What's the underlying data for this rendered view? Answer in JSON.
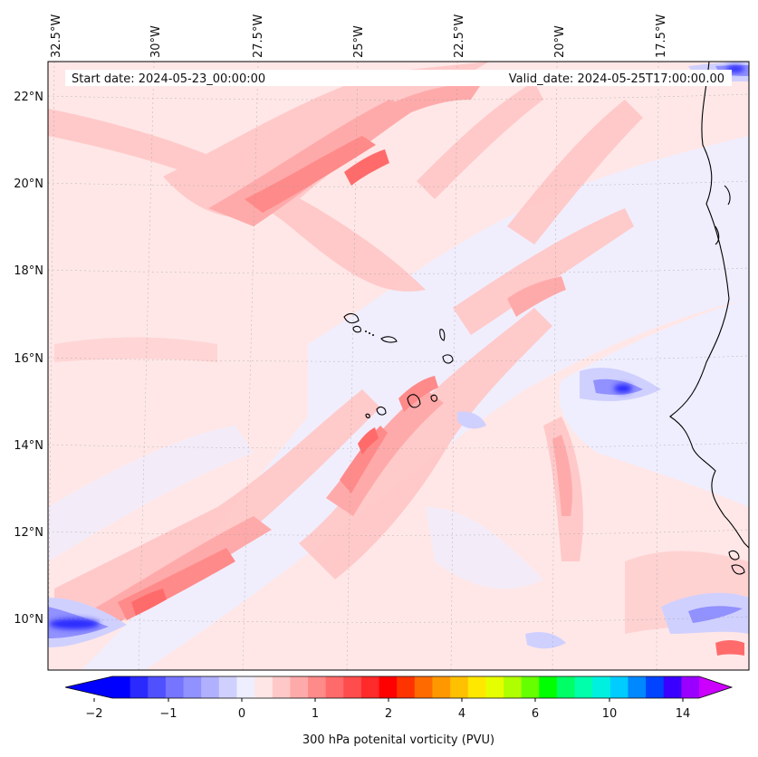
{
  "map": {
    "header": {
      "start_label": "Start date: 2024-05-23_00:00:00",
      "valid_label": "Valid_date: 2024-05-25T17:00:00.00"
    },
    "lon_ticks": [
      "32.5°W",
      "30°W",
      "27.5°W",
      "25°W",
      "22.5°W",
      "20°W",
      "17.5°W"
    ],
    "lat_ticks": [
      "22°N",
      "20°N",
      "18°N",
      "16°N",
      "14°N",
      "12°N",
      "10°N"
    ],
    "extent": {
      "lon_min": -33.0,
      "lon_max": -15.5,
      "lat_min": 8.9,
      "lat_max": 22.8
    }
  },
  "colorbar": {
    "label": "300 hPa potenital vorticity (PVU)",
    "ticks": [
      "−2",
      "−1",
      "0",
      "1",
      "2",
      "4",
      "6",
      "10",
      "14"
    ],
    "colors": [
      "#0000ff",
      "#2a2aff",
      "#5050ff",
      "#7575ff",
      "#9191ff",
      "#b0b0ff",
      "#d0d0ff",
      "#eeeeff",
      "#ffe6e6",
      "#ffc8c8",
      "#ffaaaa",
      "#ff8a8a",
      "#ff6b6b",
      "#ff4d4d",
      "#ff2a2a",
      "#ff0000",
      "#ff3300",
      "#ff6a00",
      "#ff9800",
      "#ffc000",
      "#ffe800",
      "#e6ff00",
      "#b0ff00",
      "#66ff00",
      "#00ff00",
      "#00ff66",
      "#00ffaa",
      "#00f0e0",
      "#00ccff",
      "#0088ff",
      "#0044ff",
      "#3a00ff",
      "#9a00ff"
    ],
    "under_color": "#0000ff",
    "over_color": "#cc00ff"
  }
}
